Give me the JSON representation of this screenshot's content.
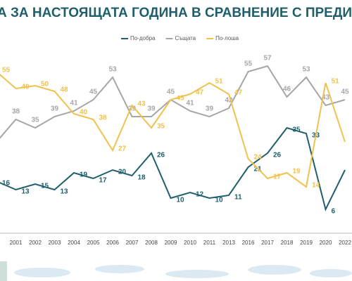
{
  "chart_data": {
    "type": "line",
    "title": "А ЗА НАСТОЯЩАТА ГОДИНА В СРАВНЕНИЕ С ПРЕДИШНАТ",
    "categories": [
      null,
      "2001",
      "2002",
      "2003",
      "2004",
      "2005",
      "2006",
      "2007",
      "2008",
      "2009",
      "2010",
      "2011",
      "2013",
      "2016",
      "2017",
      "2018",
      "2019",
      "2020",
      "2022"
    ],
    "series": [
      {
        "name": "По-добра",
        "color": "#1f5f6b",
        "values": [
          16,
          13,
          15,
          13,
          19,
          17,
          20,
          18,
          26,
          10,
          12,
          10,
          11,
          21,
          26,
          35,
          33,
          6,
          20
        ],
        "value_labels": [
          "16",
          "13",
          "15",
          "13",
          "19",
          "17",
          "20",
          "18",
          "26",
          "10",
          "12",
          "10",
          "11",
          "21",
          "26",
          "35",
          "33",
          "6",
          null
        ]
      },
      {
        "name": "Същата",
        "color": "#a6a6a6",
        "values": [
          30,
          38,
          35,
          39,
          41,
          45,
          53,
          39,
          39,
          45,
          41,
          39,
          42,
          55,
          57,
          46,
          53,
          43,
          45
        ],
        "value_labels": [
          null,
          "38",
          "35",
          "39",
          "41",
          "45",
          "53",
          "39",
          "39",
          "45",
          "41",
          "39",
          "42",
          "55",
          "57",
          "46",
          "53",
          "43",
          "45"
        ]
      },
      {
        "name": "По-лоша",
        "color": "#f0c24b",
        "values": [
          55,
          49,
          50,
          48,
          40,
          38,
          27,
          43,
          35,
          45,
          47,
          51,
          47,
          24,
          17,
          19,
          14,
          51,
          30
        ],
        "value_labels": [
          "55",
          "49",
          "50",
          "48",
          "40",
          "38",
          "27",
          "43",
          "35",
          "45",
          "47",
          "51",
          "47",
          "24",
          "17",
          "19",
          "14",
          "51",
          null
        ]
      }
    ]
  }
}
